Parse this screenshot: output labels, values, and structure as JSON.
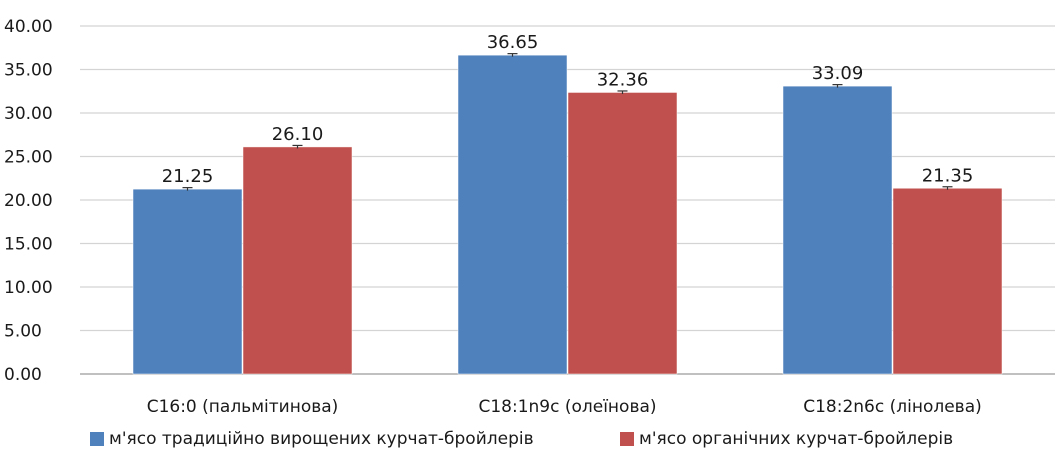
{
  "chart_data": {
    "type": "bar",
    "title": "",
    "xlabel": "",
    "ylabel": "",
    "ylim": [
      0,
      40
    ],
    "y_ticks": [
      "0.00",
      "5.00",
      "10.00",
      "15.00",
      "20.00",
      "25.00",
      "30.00",
      "35.00",
      "40.00"
    ],
    "y_tick_values": [
      0,
      5,
      10,
      15,
      20,
      25,
      30,
      35,
      40
    ],
    "grid": true,
    "legend_position": "bottom",
    "categories": [
      "С16:0 (пальмітинова)",
      "С18:1n9c (олеїнова)",
      "С18:2n6c (лінолева)"
    ],
    "series": [
      {
        "name": "м'ясо традиційно вирощених курчат-бройлерів",
        "color": "#4f81bd",
        "values": [
          21.25,
          36.65,
          33.09
        ],
        "labels": [
          "21.25",
          "36.65",
          "33.09"
        ]
      },
      {
        "name": "м'ясо органічних  курчат-бройлерів",
        "color": "#c0504d",
        "values": [
          26.1,
          32.36,
          21.35
        ],
        "labels": [
          "26.10",
          "32.36",
          "21.35"
        ]
      }
    ]
  }
}
